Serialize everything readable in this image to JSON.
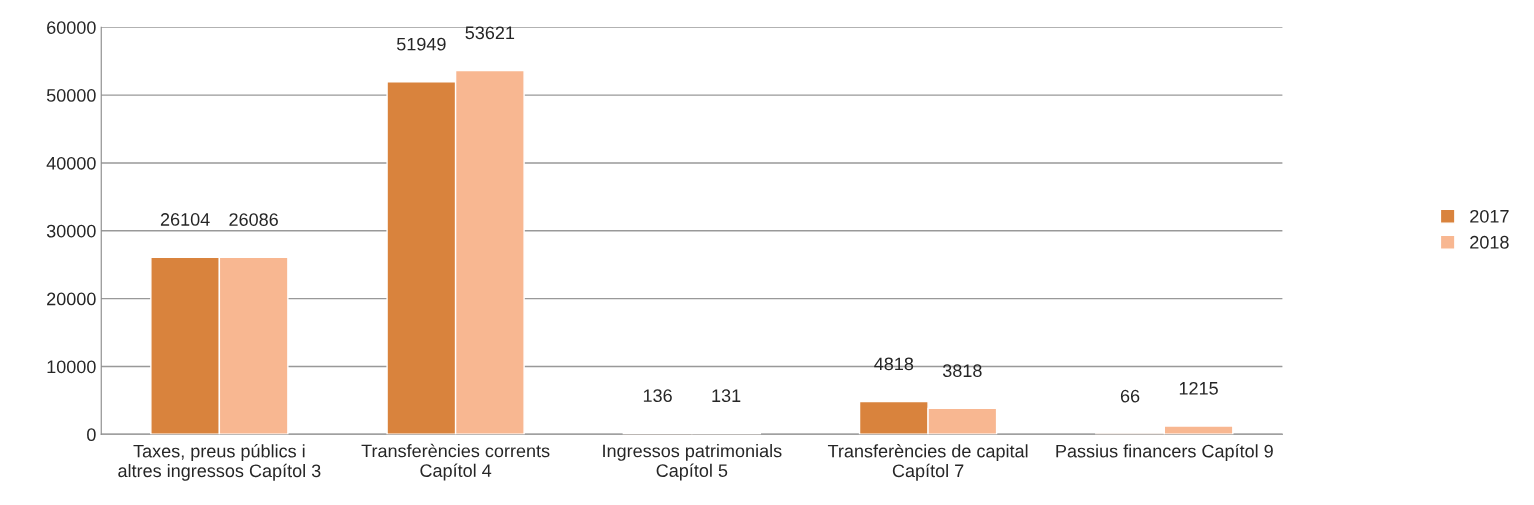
{
  "chart_data": {
    "type": "bar",
    "categories": [
      "Taxes, preus públics i\naltres ingressos Capítol 3",
      "Transferències corrents\nCapítol 4",
      "Ingressos patrimonials\nCapítol 5",
      "Transferències de capital\nCapítol 7",
      "Passius financers Capítol 9"
    ],
    "series": [
      {
        "name": "2017",
        "color": "#d9833d",
        "values": [
          26104,
          51949,
          136,
          4818,
          66
        ]
      },
      {
        "name": "2018",
        "color": "#f8b791",
        "values": [
          26086,
          53621,
          131,
          3818,
          1215
        ]
      }
    ],
    "ylim": [
      0,
      60000
    ],
    "yticks": [
      0,
      10000,
      20000,
      30000,
      40000,
      50000,
      60000
    ],
    "grid": "y",
    "legend": "right",
    "data_labels": true
  }
}
